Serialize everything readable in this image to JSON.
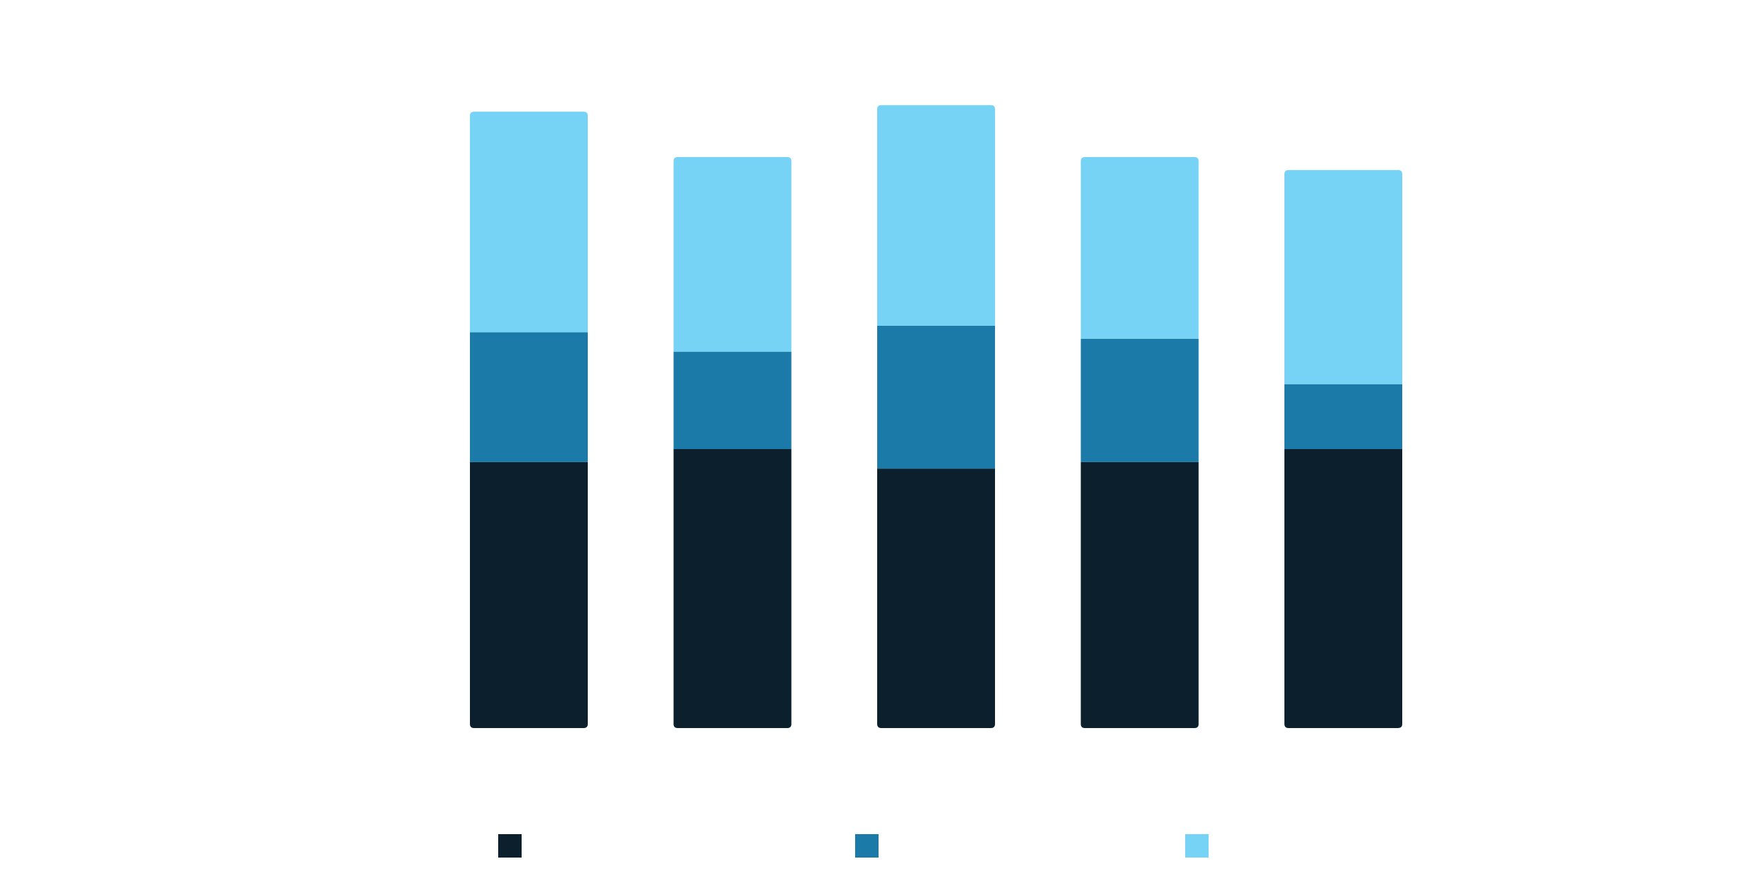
{
  "chart_data": {
    "type": "bar",
    "stacked": true,
    "categories": [
      "",
      "",
      "",
      "",
      ""
    ],
    "series": [
      {
        "values": [
          41,
          43,
          40,
          41,
          43
        ],
        "color": "#0b202c"
      },
      {
        "values": [
          20,
          15,
          22,
          19,
          10
        ],
        "color": "#1b7aa7"
      },
      {
        "values": [
          34,
          30,
          34,
          28,
          33
        ],
        "color": "#77d3f5"
      }
    ],
    "ylim": [
      0,
      100
    ],
    "grid": false,
    "legend": "bottom",
    "colors": {
      "background": "#ffffff",
      "series_1": "#0b202c",
      "series_2": "#1b7aa7",
      "series_3": "#77d3f5"
    }
  }
}
